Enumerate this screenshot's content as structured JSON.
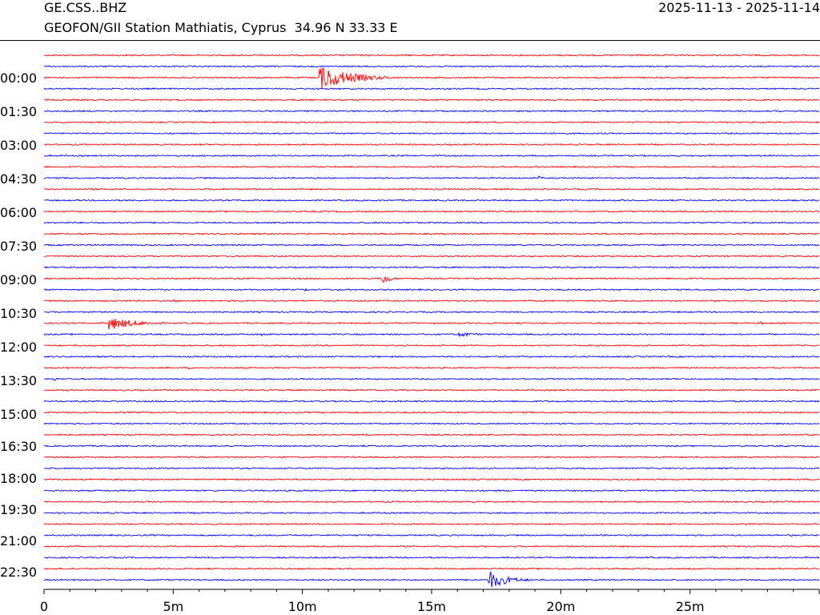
{
  "header": {
    "station_code": "GE.CSS..BHZ",
    "station_name": "GEOFON/GII Station Mathiatis, Cyprus  34.96 N 33.33 E",
    "date_range": "2025-11-13 - 2025-11-14"
  },
  "chart_data": {
    "type": "line",
    "title": "GE.CSS..BHZ",
    "subtitle": "GEOFON/GII Station Mathiatis, Cyprus  34.96 N 33.33 E",
    "xlabel": "",
    "ylabel": "",
    "x_ticks": [
      {
        "label": "0",
        "value": 0
      },
      {
        "label": "5m",
        "value": 5
      },
      {
        "label": "10m",
        "value": 10
      },
      {
        "label": "15m",
        "value": 15
      },
      {
        "label": "20m",
        "value": 20
      },
      {
        "label": "25m",
        "value": 25
      }
    ],
    "xlim": [
      0,
      30
    ],
    "y_tick_labels": [
      "00:00",
      "01:30",
      "03:00",
      "04:30",
      "06:00",
      "07:30",
      "09:00",
      "10:30",
      "12:00",
      "13:30",
      "15:00",
      "16:30",
      "18:00",
      "19:30",
      "21:00",
      "22:30"
    ],
    "trace_minutes": 30,
    "trace_count": 48,
    "colors": [
      "#ff0000",
      "#0000ff"
    ],
    "grid": false,
    "legend": "none",
    "events": [
      {
        "trace": 2,
        "start_min": 10.65,
        "amplitude": 2.3,
        "duration_min": 2.8,
        "decay": 1.2
      },
      {
        "trace": 11,
        "start_min": 19.15,
        "amplitude": 0.35,
        "duration_min": 0.25,
        "decay": 0.15
      },
      {
        "trace": 14,
        "start_min": 25.7,
        "amplitude": 0.25,
        "duration_min": 0.8,
        "decay": 0.4
      },
      {
        "trace": 20,
        "start_min": 13.05,
        "amplitude": 1.6,
        "duration_min": 0.6,
        "decay": 0.25
      },
      {
        "trace": 21,
        "start_min": 10.1,
        "amplitude": 0.25,
        "duration_min": 0.6,
        "decay": 0.3
      },
      {
        "trace": 22,
        "start_min": 5.0,
        "amplitude": 0.25,
        "duration_min": 0.8,
        "decay": 0.4
      },
      {
        "trace": 24,
        "start_min": 2.5,
        "amplitude": 1.3,
        "duration_min": 3.0,
        "decay": 1.0
      },
      {
        "trace": 24,
        "start_min": 27.7,
        "amplitude": 0.3,
        "duration_min": 0.7,
        "decay": 0.3
      },
      {
        "trace": 25,
        "start_min": 8.4,
        "amplitude": 0.3,
        "duration_min": 0.4,
        "decay": 0.2
      },
      {
        "trace": 25,
        "start_min": 16.05,
        "amplitude": 0.55,
        "duration_min": 1.6,
        "decay": 0.6
      },
      {
        "trace": 26,
        "start_min": 5.6,
        "amplitude": 0.25,
        "duration_min": 0.3,
        "decay": 0.15
      },
      {
        "trace": 28,
        "start_min": 5.6,
        "amplitude": 0.3,
        "duration_min": 0.3,
        "decay": 0.15
      },
      {
        "trace": 29,
        "start_min": 0.35,
        "amplitude": 0.4,
        "duration_min": 0.4,
        "decay": 0.2
      },
      {
        "trace": 42,
        "start_min": 24.1,
        "amplitude": 0.2,
        "duration_min": 0.8,
        "decay": 0.4
      },
      {
        "trace": 43,
        "start_min": 28.9,
        "amplitude": 0.2,
        "duration_min": 0.6,
        "decay": 0.3
      },
      {
        "trace": 47,
        "start_min": 17.15,
        "amplitude": 1.9,
        "duration_min": 2.0,
        "decay": 0.7
      }
    ]
  }
}
